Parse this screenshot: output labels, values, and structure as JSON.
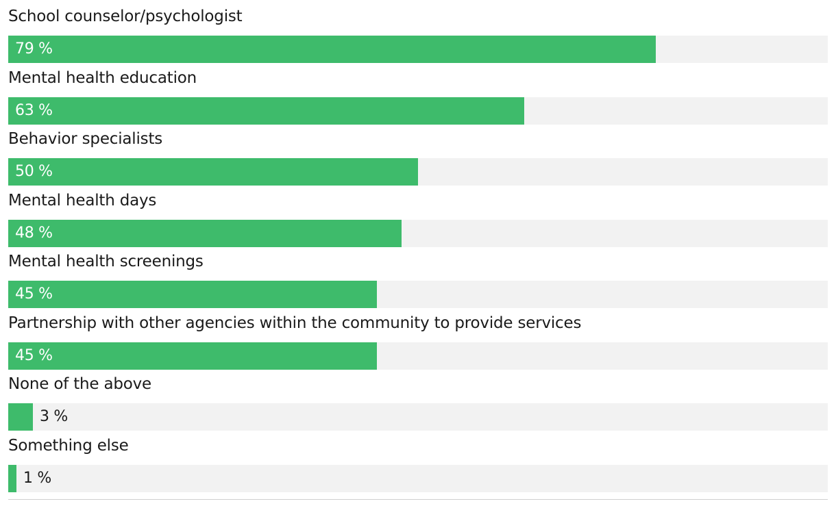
{
  "chart_data": {
    "type": "bar",
    "orientation": "horizontal",
    "categories": [
      "School counselor/psychologist",
      "Mental health education",
      "Behavior specialists",
      "Mental health days",
      "Mental health screenings",
      "Partnership with other agencies within the community to provide services",
      "None of the above",
      "Something else"
    ],
    "values": [
      79,
      63,
      50,
      48,
      45,
      45,
      3,
      1
    ],
    "value_labels": [
      "79 %",
      "63 %",
      "50 %",
      "48 %",
      "45 %",
      "45 %",
      "3 %",
      "1 %"
    ],
    "xlim": [
      0,
      100
    ],
    "unit": "%",
    "colors": {
      "bar": "#3ebb6b",
      "track": "#f2f2f2",
      "label_inside": "#ffffff",
      "label_outside": "#1a1a1a"
    }
  }
}
